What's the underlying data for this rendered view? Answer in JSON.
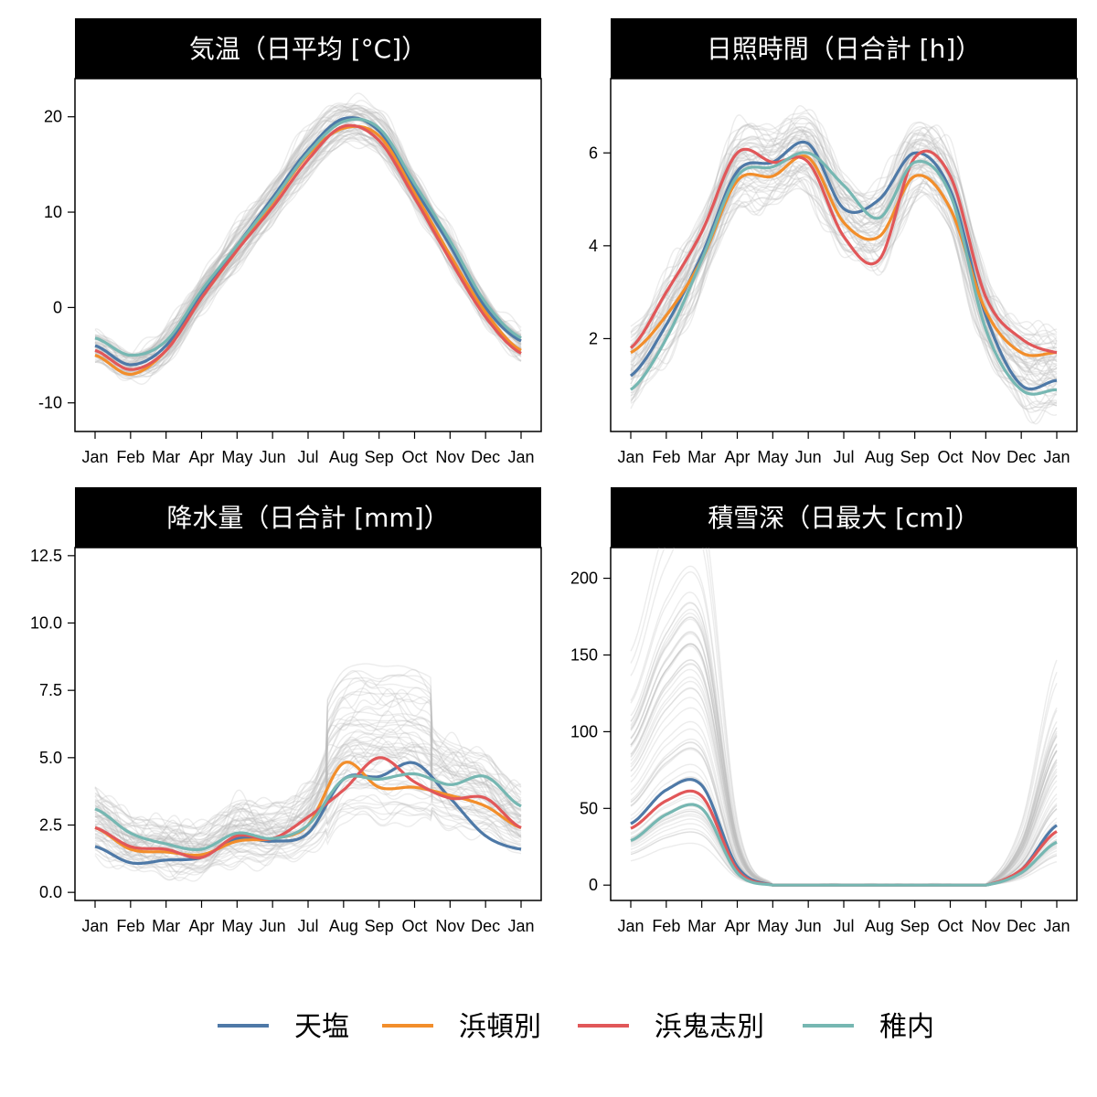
{
  "colors": {
    "天塩": "#4e79a7",
    "浜頓別": "#f28e2b",
    "浜鬼志別": "#e15759",
    "稚内": "#76b7b2",
    "background_lines": "#bbbbbb"
  },
  "legend": {
    "items": [
      {
        "label": "天塩",
        "color": "#4e79a7"
      },
      {
        "label": "浜頓別",
        "color": "#f28e2b"
      },
      {
        "label": "浜鬼志別",
        "color": "#e15759"
      },
      {
        "label": "稚内",
        "color": "#76b7b2"
      }
    ]
  },
  "chart_data": [
    {
      "type": "line",
      "title": "気温（日平均 [°C]）",
      "x": [
        "Jan",
        "Feb",
        "Mar",
        "Apr",
        "May",
        "Jun",
        "Jul",
        "Aug",
        "Sep",
        "Oct",
        "Nov",
        "Dec",
        "Jan"
      ],
      "ylim": [
        -13,
        24
      ],
      "yticks": [
        {
          "v": -10,
          "label": "-10"
        },
        {
          "v": 0,
          "label": "0"
        },
        {
          "v": 10,
          "label": "10"
        },
        {
          "v": 20,
          "label": "20"
        }
      ],
      "background": {
        "count": 60,
        "spread": 2.0
      },
      "series": [
        {
          "name": "天塩",
          "values": [
            -4.0,
            -6.0,
            -4.0,
            1.5,
            6.5,
            11.5,
            16.5,
            19.8,
            18.5,
            12.5,
            6.5,
            0.0,
            -3.5
          ]
        },
        {
          "name": "浜頓別",
          "values": [
            -5.0,
            -7.0,
            -4.5,
            1.0,
            6.0,
            11.0,
            16.0,
            18.8,
            18.0,
            12.0,
            5.5,
            -0.5,
            -4.5
          ]
        },
        {
          "name": "浜鬼志別",
          "values": [
            -4.5,
            -6.5,
            -4.5,
            1.0,
            6.0,
            10.5,
            15.5,
            19.0,
            17.5,
            11.5,
            5.0,
            -1.0,
            -4.8
          ]
        },
        {
          "name": "稚内",
          "values": [
            -3.2,
            -5.0,
            -3.5,
            1.8,
            6.5,
            11.2,
            16.2,
            19.5,
            18.8,
            13.0,
            7.0,
            0.5,
            -3.2
          ]
        }
      ]
    },
    {
      "type": "line",
      "title": "日照時間（日合計 [h]）",
      "x": [
        "Jan",
        "Feb",
        "Mar",
        "Apr",
        "May",
        "Jun",
        "Jul",
        "Aug",
        "Sep",
        "Oct",
        "Nov",
        "Dec",
        "Jan"
      ],
      "ylim": [
        0,
        7.6
      ],
      "yticks": [
        {
          "v": 2,
          "label": "2"
        },
        {
          "v": 4,
          "label": "4"
        },
        {
          "v": 6,
          "label": "6"
        }
      ],
      "background": {
        "count": 60,
        "spread": 0.8
      },
      "series": [
        {
          "name": "天塩",
          "values": [
            1.2,
            2.3,
            3.8,
            5.6,
            5.8,
            6.2,
            4.8,
            5.0,
            6.0,
            5.2,
            2.5,
            1.0,
            1.1
          ]
        },
        {
          "name": "浜頓別",
          "values": [
            1.7,
            2.5,
            3.7,
            5.4,
            5.5,
            5.9,
            4.5,
            4.2,
            5.5,
            4.8,
            2.6,
            1.7,
            1.7
          ]
        },
        {
          "name": "浜鬼志別",
          "values": [
            1.8,
            3.0,
            4.3,
            6.0,
            5.8,
            5.8,
            4.2,
            3.7,
            5.9,
            5.5,
            2.9,
            2.0,
            1.7
          ]
        },
        {
          "name": "稚内",
          "values": [
            0.9,
            2.0,
            3.7,
            5.5,
            5.7,
            6.0,
            5.3,
            4.6,
            5.8,
            5.1,
            2.2,
            0.9,
            0.9
          ]
        }
      ]
    },
    {
      "type": "line",
      "title": "降水量（日合計 [mm]）",
      "x": [
        "Jan",
        "Feb",
        "Mar",
        "Apr",
        "May",
        "Jun",
        "Jul",
        "Aug",
        "Sep",
        "Oct",
        "Nov",
        "Dec",
        "Jan"
      ],
      "ylim": [
        -0.3,
        12.8
      ],
      "yticks": [
        {
          "v": 0,
          "label": "0.0"
        },
        {
          "v": 2.5,
          "label": "2.5"
        },
        {
          "v": 5,
          "label": "5.0"
        },
        {
          "v": 7.5,
          "label": "7.5"
        },
        {
          "v": 10,
          "label": "10.0"
        },
        {
          "v": 12.5,
          "label": "12.5"
        }
      ],
      "background": {
        "count": 60,
        "spread": 1.0
      },
      "series": [
        {
          "name": "天塩",
          "values": [
            1.7,
            1.1,
            1.2,
            1.3,
            2.0,
            1.9,
            2.2,
            4.2,
            4.3,
            4.8,
            3.5,
            2.1,
            1.6
          ]
        },
        {
          "name": "浜頓別",
          "values": [
            2.4,
            1.6,
            1.5,
            1.4,
            1.9,
            2.0,
            2.5,
            4.8,
            3.9,
            3.9,
            3.6,
            3.2,
            2.4
          ]
        },
        {
          "name": "浜鬼志別",
          "values": [
            2.4,
            1.7,
            1.6,
            1.3,
            2.1,
            2.0,
            2.8,
            3.8,
            5.0,
            4.1,
            3.5,
            3.5,
            2.4
          ]
        },
        {
          "name": "稚内",
          "values": [
            3.1,
            2.2,
            1.8,
            1.6,
            2.2,
            2.0,
            2.5,
            4.2,
            4.2,
            4.4,
            4.0,
            4.3,
            3.2
          ]
        }
      ]
    },
    {
      "type": "line",
      "title": "積雪深（日最大 [cm]）",
      "x": [
        "Jan",
        "Feb",
        "Mar",
        "Apr",
        "May",
        "Jun",
        "Jul",
        "Aug",
        "Sep",
        "Oct",
        "Nov",
        "Dec",
        "Jan"
      ],
      "ylim": [
        -10,
        220
      ],
      "yticks": [
        {
          "v": 0,
          "label": "0"
        },
        {
          "v": 50,
          "label": "50"
        },
        {
          "v": 100,
          "label": "100"
        },
        {
          "v": 150,
          "label": "150"
        },
        {
          "v": 200,
          "label": "200"
        }
      ],
      "background": {
        "count": 60,
        "spread": 0.6
      },
      "series": [
        {
          "name": "天塩",
          "values": [
            40,
            62,
            65,
            12,
            0,
            0,
            0,
            0,
            0,
            0,
            0,
            10,
            39
          ]
        },
        {
          "name": "浜鬼志別",
          "values": [
            37,
            55,
            58,
            10,
            0,
            0,
            0,
            0,
            0,
            0,
            0,
            10,
            35
          ]
        },
        {
          "name": "稚内",
          "values": [
            29,
            46,
            50,
            8,
            0,
            0,
            0,
            0,
            0,
            0,
            0,
            8,
            28
          ]
        }
      ]
    }
  ]
}
